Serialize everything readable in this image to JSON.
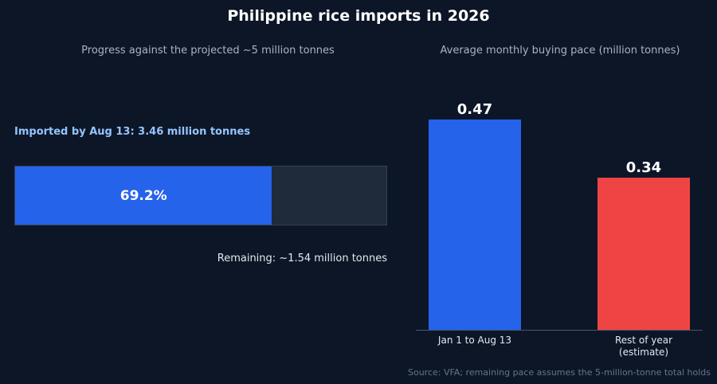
{
  "title": "Philippine rice imports in 2026",
  "progress_panel": {
    "subtitle": "Progress against the projected ~5 million tonnes",
    "imported_label": "Imported by Aug 13: 3.46 million tonnes",
    "percent_label": "69.2%",
    "fraction": 0.692,
    "remaining_label": "Remaining: ~1.54 million tonnes",
    "colors": {
      "fill": "#2563eb",
      "track": "#1f2a3b"
    }
  },
  "pace_panel": {
    "subtitle": "Average monthly buying pace (million tonnes)"
  },
  "source": "Source: VFA; remaining pace assumes the 5-million-tonne total holds",
  "chart_data": [
    {
      "type": "bar",
      "title": "Progress against the projected ~5 million tonnes",
      "categories": [
        "Imported by Aug 13",
        "Remaining"
      ],
      "values": [
        3.46,
        1.54
      ],
      "total": 5,
      "percent_label": "69.2%",
      "orientation": "horizontal-stacked"
    },
    {
      "type": "bar",
      "title": "Average monthly buying pace (million tonnes)",
      "categories": [
        [
          "Jan 1 to Aug 13"
        ],
        [
          "Rest of year",
          "(estimate)"
        ]
      ],
      "values": [
        0.47,
        0.34
      ],
      "value_labels": [
        "0.47",
        "0.34"
      ],
      "colors": [
        "#2563eb",
        "#ef4444"
      ],
      "ylim": [
        0,
        0.47
      ],
      "grid": false
    }
  ]
}
